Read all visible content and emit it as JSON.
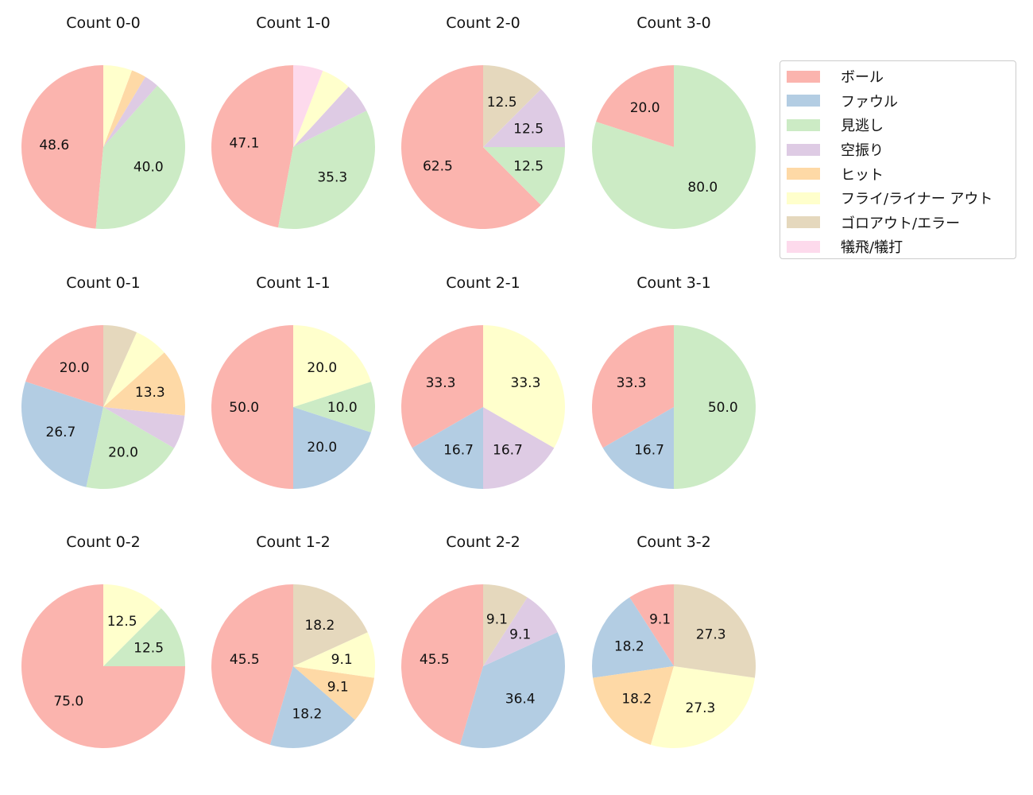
{
  "chart_data": {
    "type": "pie",
    "legend": {
      "placement": "top-right",
      "entries": [
        "ボール",
        "ファウル",
        "見逃し",
        "空振り",
        "ヒット",
        "フライ/ライナー アウト",
        "ゴロアウト/エラー",
        "犠飛/犠打"
      ]
    },
    "colors": [
      "#fbb4ae",
      "#b3cde3",
      "#ccebc5",
      "#decbe4",
      "#fed9a6",
      "#ffffcc",
      "#e5d8bd",
      "#fddaec"
    ],
    "charts": [
      {
        "title": "Count 0-0",
        "values": [
          48.6,
          0,
          40.0,
          2.9,
          2.9,
          5.7,
          0,
          0
        ]
      },
      {
        "title": "Count 1-0",
        "values": [
          47.1,
          0,
          35.3,
          5.9,
          0,
          5.9,
          0,
          5.9
        ]
      },
      {
        "title": "Count 2-0",
        "values": [
          62.5,
          0,
          12.5,
          12.5,
          0,
          0,
          12.5,
          0
        ]
      },
      {
        "title": "Count 3-0",
        "values": [
          20.0,
          0,
          80.0,
          0,
          0,
          0,
          0,
          0
        ]
      },
      {
        "title": "Count 0-1",
        "values": [
          20.0,
          26.7,
          20.0,
          6.7,
          13.3,
          6.7,
          6.7,
          0
        ]
      },
      {
        "title": "Count 1-1",
        "values": [
          50.0,
          20.0,
          10.0,
          0,
          0,
          20.0,
          0,
          0
        ]
      },
      {
        "title": "Count 2-1",
        "values": [
          33.3,
          16.7,
          0,
          16.7,
          0,
          33.3,
          0,
          0
        ]
      },
      {
        "title": "Count 3-1",
        "values": [
          33.3,
          16.7,
          50.0,
          0,
          0,
          0,
          0,
          0
        ]
      },
      {
        "title": "Count 0-2",
        "values": [
          75.0,
          0,
          12.5,
          0,
          0,
          12.5,
          0,
          0
        ]
      },
      {
        "title": "Count 1-2",
        "values": [
          45.5,
          18.2,
          0,
          0,
          9.1,
          9.1,
          18.2,
          0
        ]
      },
      {
        "title": "Count 2-2",
        "values": [
          45.5,
          36.4,
          0,
          9.1,
          0,
          0,
          9.1,
          0
        ]
      },
      {
        "title": "Count 3-2",
        "values": [
          9.1,
          18.2,
          0,
          0,
          18.2,
          27.3,
          27.3,
          0
        ]
      }
    ]
  }
}
